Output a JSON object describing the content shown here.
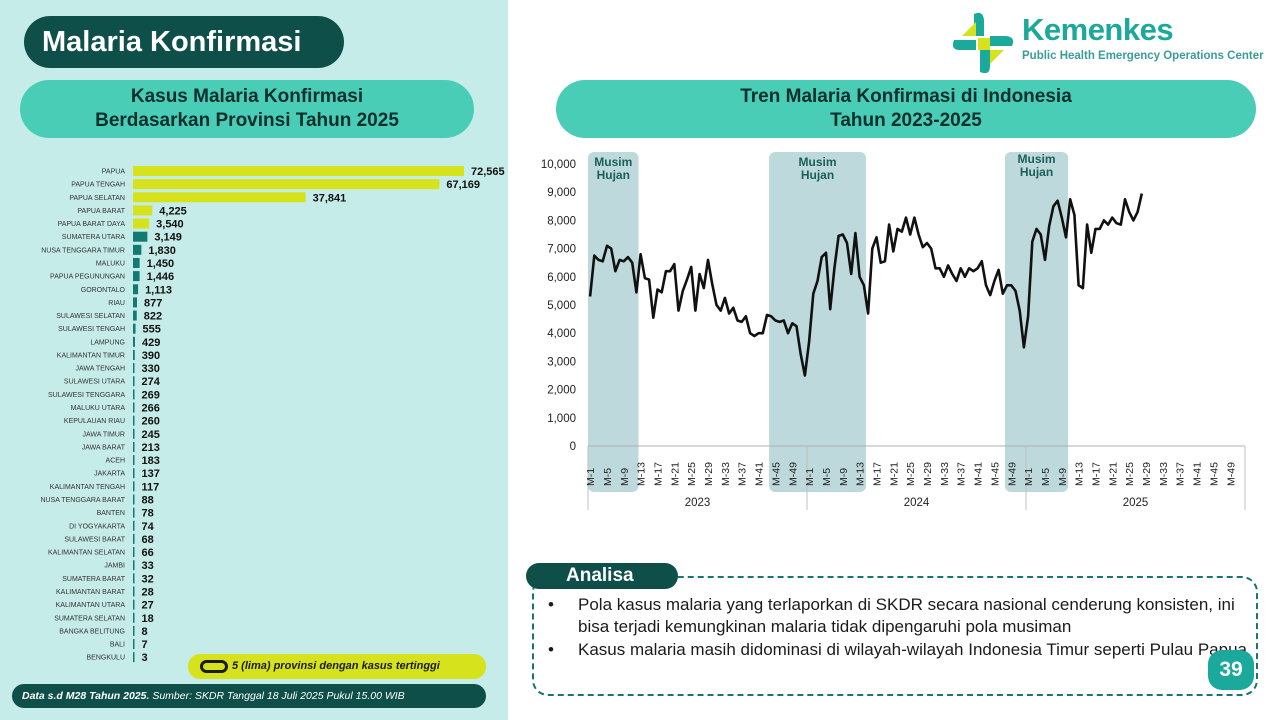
{
  "title": "Malaria Konfirmasi",
  "left_chart": {
    "title_line1": "Kasus Malaria Konfirmasi",
    "title_line2": "Berdasarkan Provinsi Tahun 2025",
    "legend_note": "5 (lima) provinsi dengan kasus tertinggi",
    "highlight_color": "#d6e21c",
    "bar_color": "#127a72"
  },
  "right_chart": {
    "title_line1": "Tren Malaria Konfirmasi di Indonesia",
    "title_line2": "Tahun 2023-2025",
    "line_color": "#111111",
    "shade_color": "#b3d2d6"
  },
  "logo": {
    "name": "Kemenkes",
    "subtitle": "Public Health Emergency Operations Center",
    "icon": "kemenkes-cross-logo"
  },
  "source": {
    "bold": "Data s.d M28 Tahun 2025.",
    "rest": " Sumber: SKDR Tanggal 18 Juli 2025 Pukul 15.00 WIB"
  },
  "analysis": {
    "label": "Analisa",
    "items": [
      "Pola kasus malaria yang terlaporkan di SKDR secara nasional cenderung konsisten, ini bisa terjadi kemungkinan malaria tidak dipengaruhi pola musiman",
      "Kasus malaria masih didominasi di wilayah-wilayah Indonesia Timur seperti Pulau Papua"
    ]
  },
  "page_number": "39",
  "chart_data": [
    {
      "type": "bar",
      "orientation": "horizontal",
      "title": "Kasus Malaria Konfirmasi Berdasarkan Provinsi Tahun 2025",
      "categories": [
        "PAPUA",
        "PAPUA TENGAH",
        "PAPUA SELATAN",
        "PAPUA BARAT",
        "PAPUA BARAT DAYA",
        "SUMATERA UTARA",
        "NUSA TENGGARA TIMUR",
        "MALUKU",
        "PAPUA PEGUNUNGAN",
        "GORONTALO",
        "RIAU",
        "SULAWESI SELATAN",
        "SULAWESI TENGAH",
        "LAMPUNG",
        "KALIMANTAN TIMUR",
        "JAWA TENGAH",
        "SULAWESI UTARA",
        "SULAWESI TENGGARA",
        "MALUKU UTARA",
        "KEPULAUAN RIAU",
        "JAWA TIMUR",
        "JAWA BARAT",
        "ACEH",
        "JAKARTA",
        "KALIMANTAN TENGAH",
        "NUSA TENGGARA BARAT",
        "BANTEN",
        "DI YOGYAKARTA",
        "SULAWESI BARAT",
        "KALIMANTAN SELATAN",
        "JAMBI",
        "SUMATERA BARAT",
        "KALIMANTAN BARAT",
        "KALIMANTAN UTARA",
        "SUMATERA SELATAN",
        "BANGKA BELITUNG",
        "BALI",
        "BENGKULU"
      ],
      "values": [
        72565,
        67169,
        37841,
        4225,
        3540,
        3149,
        1830,
        1450,
        1446,
        1113,
        877,
        822,
        555,
        429,
        390,
        330,
        274,
        269,
        266,
        260,
        245,
        213,
        183,
        137,
        117,
        88,
        78,
        74,
        68,
        66,
        33,
        32,
        28,
        27,
        18,
        8,
        7,
        3
      ],
      "value_labels": [
        "72,565",
        "67,169",
        "37,841",
        "4,225",
        "3,540",
        "3,149",
        "1,830",
        "1,450",
        "1,446",
        "1,113",
        "877",
        "822",
        "555",
        "429",
        "390",
        "330",
        "274",
        "269",
        "266",
        "260",
        "245",
        "213",
        "183",
        "137",
        "117",
        "88",
        "78",
        "74",
        "68",
        "66",
        "33",
        "32",
        "28",
        "27",
        "18",
        "8",
        "7",
        "3"
      ],
      "highlighted": [
        "PAPUA",
        "PAPUA TENGAH",
        "PAPUA SELATAN",
        "PAPUA BARAT",
        "PAPUA BARAT DAYA"
      ]
    },
    {
      "type": "line",
      "title": "Tren Malaria Konfirmasi di Indonesia Tahun 2023-2025",
      "years": [
        "2023",
        "2024",
        "2025"
      ],
      "week_ticks": [
        "M-1",
        "M-5",
        "M-9",
        "M-13",
        "M-17",
        "M-21",
        "M-25",
        "M-29",
        "M-33",
        "M-37",
        "M-41",
        "M-45",
        "M-49"
      ],
      "ylim": [
        0,
        10000
      ],
      "yticks": [
        "10,000",
        "9,000",
        "8,000",
        "7,000",
        "6,000",
        "5,000",
        "4,000",
        "3,000",
        "2,000",
        "1,000",
        "0"
      ],
      "annotations": [
        {
          "label_line1": "Musim",
          "label_line2": "Hujan",
          "year": "2023",
          "from_week": 1,
          "to_week": 12
        },
        {
          "label_line1": "Musim",
          "label_line2": "Hujan",
          "year": "2023-2024",
          "from_week": 44,
          "to_week": 66
        },
        {
          "label_line1": "Musim",
          "label_line2": "Hujan",
          "year": "2024-2025",
          "from_week": 100,
          "to_week": 114
        }
      ],
      "series": [
        {
          "values_2023": [
            5300,
            6750,
            6600,
            6550,
            7100,
            7000,
            6200,
            6600,
            6550,
            6700,
            6500,
            5450,
            6800,
            5950,
            5900,
            4550,
            5550,
            5450,
            6200,
            6200,
            6450,
            4800,
            5500,
            5900,
            6350,
            4800,
            6100,
            5600,
            6600,
            5750,
            5000,
            4800,
            5250,
            4700,
            4900,
            4450,
            4400,
            4600,
            4000,
            3900,
            4000,
            4000
          ],
          "values_2024": [
            4650,
            4600,
            4450,
            4400,
            4450,
            4000,
            4350,
            4250,
            3250,
            2500,
            3700,
            5400,
            5850,
            6700,
            6850,
            4850,
            6300,
            7450,
            7500,
            7200,
            6100,
            7550,
            6000,
            5700,
            4700,
            7000,
            7400,
            6500,
            6550,
            7850,
            6900,
            7700,
            7600,
            8100,
            7500,
            8100,
            7500,
            7050,
            7200,
            7000,
            6300,
            6300,
            6000,
            6400,
            6100,
            5850,
            6300,
            6000,
            6300,
            6200,
            6300,
            6550,
            5700,
            5350,
            5850,
            6250,
            5400,
            5700,
            5700,
            5500,
            4800,
            3500,
            4600,
            7250,
            7700,
            7500,
            6600
          ],
          "values_2025": [
            7800,
            8500,
            8700,
            8100,
            7400,
            8750,
            8200,
            5700,
            5600,
            7850,
            6850,
            7700,
            7700,
            8000,
            7850,
            8100,
            7900,
            7850,
            8750,
            8300,
            8000,
            8300,
            8950
          ]
        }
      ]
    }
  ]
}
